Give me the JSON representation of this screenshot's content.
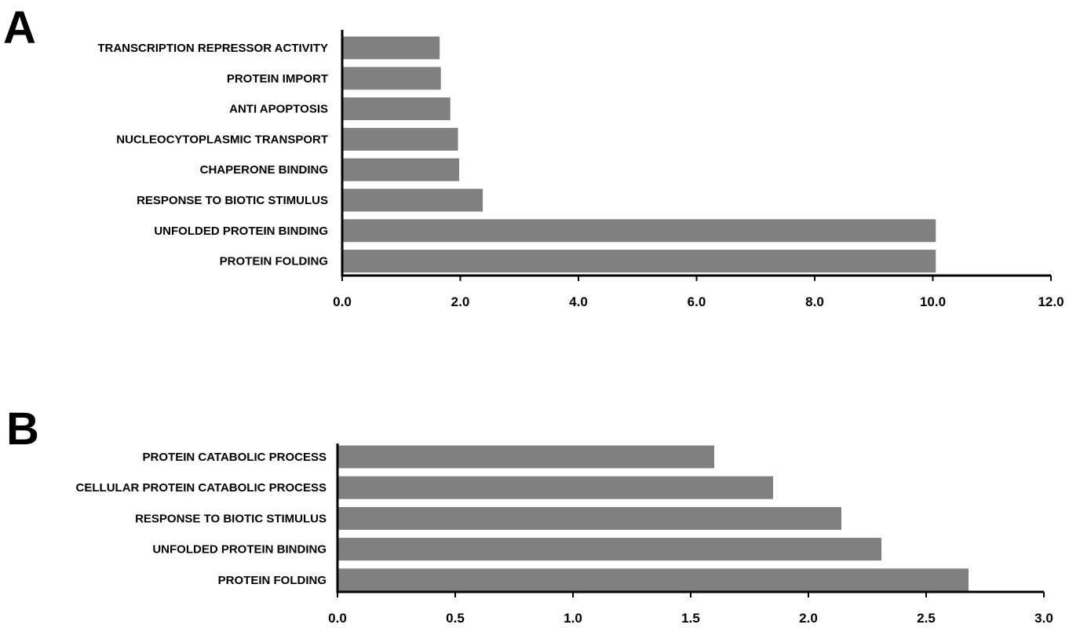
{
  "panels": [
    {
      "label": "A"
    },
    {
      "label": "B"
    }
  ],
  "chart_data": [
    {
      "type": "bar",
      "orientation": "horizontal",
      "categories": [
        "TRANSCRIPTION REPRESSOR ACTIVITY",
        "PROTEIN IMPORT",
        "ANTI APOPTOSIS",
        "NUCLEOCYTOPLASMIC TRANSPORT",
        "CHAPERONE BINDING",
        "RESPONSE TO BIOTIC STIMULUS",
        "UNFOLDED PROTEIN BINDING",
        "PROTEIN FOLDING"
      ],
      "values": [
        1.65,
        1.67,
        1.83,
        1.96,
        1.98,
        2.38,
        10.05,
        10.05
      ],
      "xlim": [
        0,
        12
      ],
      "ticks": [
        "0.0",
        "2.0",
        "4.0",
        "6.0",
        "8.0",
        "10.0",
        "12.0"
      ],
      "bar_color": "#808080",
      "grid": false
    },
    {
      "type": "bar",
      "orientation": "horizontal",
      "categories": [
        "PROTEIN CATABOLIC PROCESS",
        "CELLULAR PROTEIN CATABOLIC PROCESS",
        "RESPONSE TO BIOTIC STIMULUS",
        "UNFOLDED PROTEIN BINDING",
        "PROTEIN FOLDING"
      ],
      "values": [
        1.6,
        1.85,
        2.14,
        2.31,
        2.68
      ],
      "xlim": [
        0,
        3
      ],
      "ticks": [
        "0.0",
        "0.5",
        "1.0",
        "1.5",
        "2.0",
        "2.5",
        "3.0"
      ],
      "bar_color": "#808080",
      "grid": false
    }
  ]
}
